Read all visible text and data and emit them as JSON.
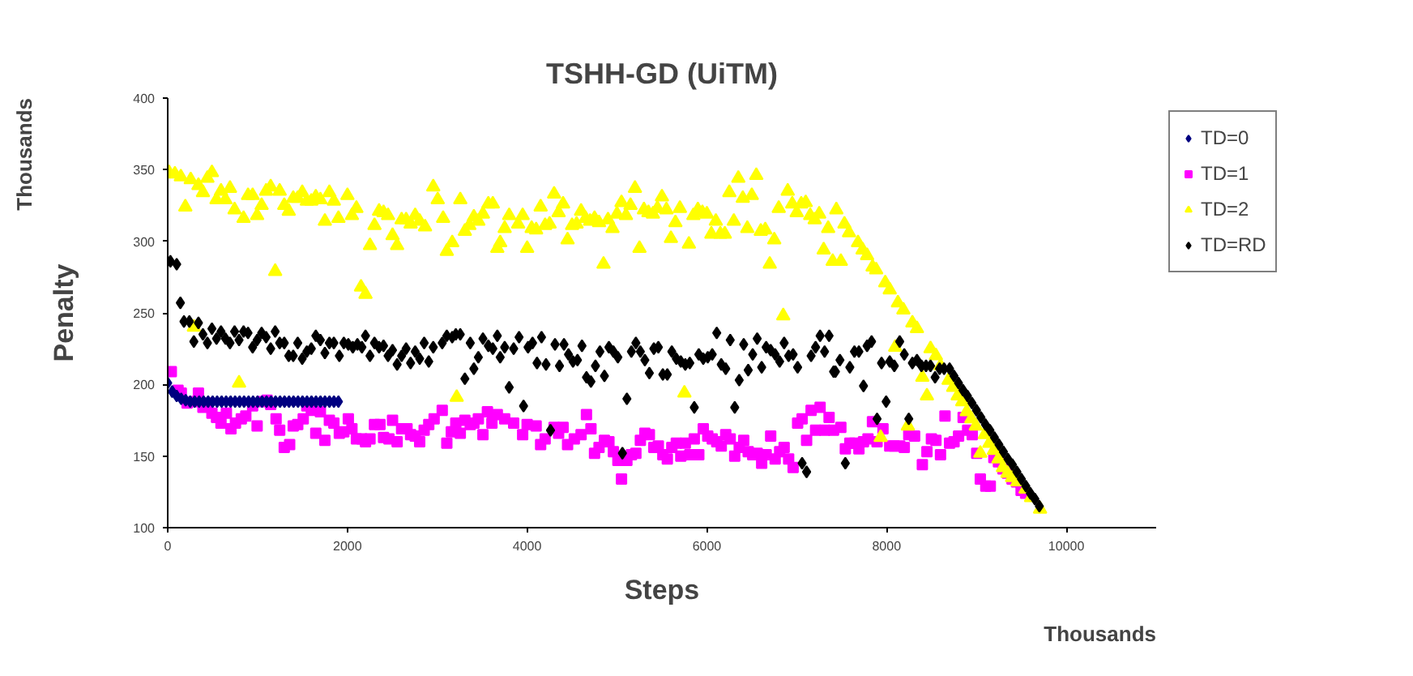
{
  "chart_data": {
    "type": "scatter",
    "title": "TSHH-GD (UiTM)",
    "xlabel": "Steps",
    "ylabel": "Penalty",
    "annotations": [
      "Thousands",
      "Thousands"
    ],
    "xlim": [
      0,
      11000
    ],
    "xticks": [
      0,
      2000,
      4000,
      6000,
      8000,
      10000
    ],
    "ylim": [
      100,
      400
    ],
    "yticks": [
      100,
      150,
      200,
      250,
      300,
      350,
      400
    ],
    "grid": false,
    "legend": "top right",
    "series": [
      {
        "name": "TD=0",
        "color": "#000080",
        "marker": "diamond",
        "x": [
          0,
          50,
          100,
          150,
          200,
          250,
          300,
          350,
          400,
          450,
          500,
          550,
          600,
          650,
          700,
          750,
          800,
          850,
          900,
          950,
          1000,
          1050,
          1100,
          1150,
          1200,
          1250,
          1300,
          1350,
          1400,
          1450,
          1500,
          1550,
          1600,
          1650,
          1700,
          1750,
          1800,
          1850,
          1900
        ],
        "values": [
          201,
          195,
          192,
          190,
          189,
          188,
          188,
          188,
          188,
          188,
          188,
          188,
          188,
          188,
          188,
          188,
          188,
          188,
          188,
          188,
          188,
          188,
          188,
          188,
          188,
          188,
          188,
          188,
          188,
          188,
          188,
          188,
          188,
          188,
          188,
          188,
          188,
          188,
          188
        ]
      },
      {
        "name": "TD=1",
        "color": "#ff00ff",
        "marker": "square",
        "x": [
          40,
          115,
          151,
          216,
          291,
          342,
          392,
          442,
          492,
          543,
          593,
          653,
          704,
          754,
          819,
          869,
          945,
          995,
          1045,
          1106,
          1146,
          1206,
          1246,
          1297,
          1357,
          1397,
          1447,
          1508,
          1548,
          1598,
          1648,
          1699,
          1749,
          1799,
          1849,
          1910,
          1960,
          2010,
          2050,
          2100,
          2161,
          2201,
          2251,
          2301,
          2362,
          2402,
          2462,
          2502,
          2553,
          2603,
          2663,
          2703,
          2754,
          2804,
          2854,
          2905,
          2965,
          3055,
          3106,
          3156,
          3206,
          3256,
          3307,
          3367,
          3407,
          3457,
          3508,
          3558,
          3608,
          3668,
          3750,
          3850,
          3950,
          4000,
          4100,
          4150,
          4200,
          4300,
          4350,
          4400,
          4450,
          4525,
          4600,
          4660,
          4710,
          4750,
          4800,
          4860,
          4910,
          4960,
          5010,
          5050,
          5110,
          5160,
          5210,
          5260,
          5310,
          5360,
          5410,
          5460,
          5510,
          5560,
          5610,
          5660,
          5710,
          5760,
          5810,
          5860,
          5910,
          5960,
          6010,
          6060,
          6110,
          6160,
          6210,
          6260,
          6310,
          6360,
          6410,
          6460,
          6510,
          6560,
          6610,
          6660,
          6710,
          6760,
          6810,
          6860,
          6910,
          6960,
          7010,
          7060,
          7110,
          7160,
          7210,
          7260,
          7310,
          7360,
          7410,
          7491,
          7541,
          7591,
          7642,
          7692,
          7743,
          7793,
          7843,
          7894,
          7960,
          8035,
          8086,
          8146,
          8197,
          8247,
          8312,
          8398,
          8449,
          8499,
          8549,
          8600,
          8650,
          8701,
          8751,
          8801,
          8852,
          8902,
          8953,
          9003,
          9043,
          9104,
          9154,
          9194,
          9245,
          9295,
          9345,
          9396,
          9446,
          9497,
          9547
        ],
        "values": [
          209,
          196,
          194,
          187,
          188,
          194,
          184,
          187,
          180,
          177,
          173,
          180,
          169,
          173,
          176,
          178,
          185,
          171,
          188,
          189,
          186,
          176,
          168,
          156,
          158,
          171,
          172,
          176,
          185,
          182,
          166,
          181,
          161,
          175,
          173,
          166,
          167,
          176,
          169,
          162,
          162,
          160,
          162,
          172,
          172,
          163,
          162,
          175,
          160,
          169,
          169,
          165,
          164,
          160,
          168,
          172,
          176,
          182,
          159,
          167,
          173,
          166,
          175,
          172,
          173,
          176,
          165,
          181,
          173,
          179,
          176,
          173,
          165,
          172,
          171,
          158,
          162,
          170,
          166,
          170,
          158,
          162,
          165,
          179,
          169,
          152,
          156,
          161,
          160,
          153,
          147,
          134,
          147,
          151,
          152,
          161,
          166,
          165,
          156,
          157,
          151,
          148,
          156,
          159,
          150,
          159,
          151,
          162,
          151,
          169,
          164,
          162,
          160,
          157,
          165,
          162,
          150,
          156,
          161,
          153,
          151,
          152,
          145,
          151,
          164,
          148,
          153,
          156,
          148,
          142,
          173,
          176,
          161,
          182,
          168,
          184,
          168,
          177,
          168,
          170,
          155,
          159,
          159,
          155,
          160,
          162,
          174,
          160,
          169,
          157,
          157,
          157,
          156,
          165,
          164,
          144,
          153,
          162,
          161,
          151,
          178,
          159,
          160,
          164,
          177,
          168,
          165,
          152,
          134,
          129,
          129,
          149,
          146,
          141,
          138,
          134,
          132,
          126,
          124
        ]
      },
      {
        "name": "TD=2",
        "color": "#ffff00",
        "marker": "triangle",
        "x": [
          15,
          80,
          146,
          196,
          256,
          291,
          342,
          392,
          442,
          492,
          543,
          593,
          643,
          693,
          744,
          794,
          844,
          894,
          945,
          995,
          1045,
          1095,
          1146,
          1196,
          1246,
          1297,
          1347,
          1397,
          1447,
          1497,
          1548,
          1598,
          1648,
          1699,
          1749,
          1799,
          1849,
          1900,
          2000,
          2050,
          2100,
          2151,
          2201,
          2251,
          2301,
          2352,
          2402,
          2452,
          2502,
          2553,
          2603,
          2653,
          2703,
          2754,
          2804,
          2864,
          2955,
          3005,
          3065,
          3106,
          3166,
          3216,
          3256,
          3307,
          3357,
          3407,
          3457,
          3508,
          3568,
          3618,
          3668,
          3700,
          3750,
          3800,
          3900,
          3950,
          4000,
          4050,
          4100,
          4150,
          4200,
          4250,
          4300,
          4350,
          4400,
          4450,
          4500,
          4550,
          4600,
          4650,
          4700,
          4750,
          4800,
          4850,
          4900,
          4950,
          5000,
          5050,
          5100,
          5150,
          5200,
          5250,
          5300,
          5350,
          5400,
          5450,
          5500,
          5550,
          5600,
          5650,
          5700,
          5750,
          5800,
          5850,
          5900,
          5950,
          6000,
          6050,
          6100,
          6150,
          6200,
          6250,
          6300,
          6350,
          6400,
          6450,
          6500,
          6550,
          6600,
          6650,
          6700,
          6750,
          6800,
          6850,
          6900,
          6950,
          7000,
          7050,
          7100,
          7150,
          7200,
          7250,
          7300,
          7350,
          7400,
          7441,
          7491,
          7531,
          7582,
          7682,
          7733,
          7783,
          7844,
          7884,
          7934,
          7985,
          8035,
          8096,
          8126,
          8187,
          8237,
          8287,
          8338,
          8398,
          8449,
          8489,
          8549,
          8600,
          8690,
          8741,
          8791,
          8842,
          8892,
          8943,
          8993,
          9043,
          9093,
          9144,
          9194,
          9245,
          9295,
          9345,
          9396,
          9456,
          9547,
          9608,
          9708
        ],
        "values": [
          348,
          347,
          345,
          324,
          343,
          240,
          339,
          334,
          344,
          348,
          329,
          335,
          329,
          337,
          322,
          201,
          316,
          332,
          332,
          318,
          325,
          335,
          338,
          279,
          335,
          325,
          321,
          330,
          330,
          334,
          328,
          328,
          331,
          329,
          314,
          334,
          328,
          316,
          332,
          318,
          323,
          268,
          263,
          297,
          311,
          321,
          320,
          318,
          304,
          297,
          315,
          315,
          312,
          318,
          314,
          310,
          338,
          329,
          316,
          293,
          299,
          191,
          329,
          307,
          311,
          317,
          314,
          319,
          326,
          326,
          295,
          299,
          309,
          318,
          312,
          318,
          295,
          309,
          308,
          324,
          311,
          312,
          333,
          320,
          326,
          301,
          311,
          312,
          321,
          316,
          314,
          316,
          313,
          284,
          315,
          309,
          319,
          327,
          318,
          325,
          337,
          295,
          322,
          320,
          319,
          323,
          331,
          322,
          302,
          313,
          323,
          194,
          298,
          318,
          322,
          320,
          319,
          305,
          314,
          305,
          305,
          334,
          314,
          344,
          330,
          309,
          332,
          346,
          307,
          308,
          284,
          301,
          323,
          248,
          335,
          326,
          320,
          326,
          327,
          318,
          315,
          319,
          294,
          309,
          286,
          322,
          286,
          312,
          306,
          299,
          294,
          290,
          282,
          280,
          163,
          271,
          266,
          226,
          257,
          252,
          171,
          243,
          239,
          205,
          192,
          225,
          220,
          213,
          203,
          198,
          192,
          188,
          181,
          176,
          171,
          152,
          165,
          159,
          154,
          148,
          142,
          138,
          135,
          132,
          127,
          121,
          113
        ]
      },
      {
        "name": "TD=RD",
        "color": "#000000",
        "marker": "diamond",
        "x": [
          30,
          100,
          141,
          181,
          241,
          291,
          342,
          392,
          442,
          492,
          543,
          593,
          643,
          693,
          744,
          794,
          844,
          894,
          945,
          995,
          1045,
          1095,
          1146,
          1196,
          1246,
          1297,
          1347,
          1397,
          1447,
          1497,
          1548,
          1598,
          1648,
          1699,
          1749,
          1799,
          1849,
          1910,
          1960,
          2010,
          2060,
          2111,
          2161,
          2201,
          2251,
          2301,
          2352,
          2402,
          2452,
          2502,
          2553,
          2603,
          2653,
          2703,
          2754,
          2804,
          2854,
          2905,
          2955,
          3055,
          3106,
          3166,
          3206,
          3256,
          3307,
          3367,
          3407,
          3457,
          3508,
          3568,
          3618,
          3668,
          3700,
          3750,
          3800,
          3850,
          3910,
          3960,
          4010,
          4060,
          4110,
          4160,
          4210,
          4260,
          4310,
          4360,
          4410,
          4460,
          4510,
          4560,
          4610,
          4660,
          4710,
          4760,
          4810,
          4860,
          4910,
          4960,
          5010,
          5060,
          5110,
          5160,
          5210,
          5260,
          5310,
          5360,
          5410,
          5460,
          5510,
          5560,
          5610,
          5660,
          5710,
          5760,
          5810,
          5860,
          5910,
          5960,
          6010,
          6060,
          6110,
          6160,
          6210,
          6260,
          6310,
          6360,
          6410,
          6460,
          6510,
          6560,
          6610,
          6660,
          6710,
          6760,
          6810,
          6860,
          6910,
          6960,
          7010,
          7060,
          7110,
          7160,
          7210,
          7260,
          7310,
          7360,
          7410,
          7431,
          7481,
          7541,
          7591,
          7642,
          7692,
          7743,
          7783,
          7833,
          7894,
          7944,
          7995,
          8035,
          8086,
          8146,
          8197,
          8247,
          8287,
          8338,
          8388,
          8439,
          8489,
          8540,
          8590,
          8640,
          8701,
          8750,
          8800,
          8850,
          8900,
          8950,
          9000,
          9050,
          9100,
          9150,
          9200,
          9250,
          9300,
          9350,
          9400,
          9450,
          9500,
          9550,
          9600,
          9650,
          9700
        ],
        "values": [
          286,
          284,
          257,
          244,
          244,
          230,
          243,
          235,
          229,
          239,
          232,
          237,
          232,
          229,
          237,
          231,
          237,
          236,
          226,
          231,
          236,
          233,
          225,
          237,
          229,
          229,
          220,
          220,
          229,
          218,
          223,
          225,
          234,
          231,
          222,
          229,
          229,
          220,
          229,
          228,
          226,
          228,
          226,
          234,
          220,
          229,
          226,
          227,
          220,
          224,
          214,
          220,
          225,
          215,
          223,
          218,
          229,
          216,
          226,
          229,
          234,
          233,
          235,
          235,
          204,
          229,
          211,
          219,
          232,
          227,
          225,
          234,
          219,
          226,
          198,
          225,
          233,
          185,
          226,
          229,
          215,
          233,
          214,
          168,
          228,
          213,
          228,
          221,
          216,
          217,
          227,
          205,
          202,
          213,
          223,
          206,
          226,
          223,
          219,
          152,
          190,
          223,
          229,
          223,
          217,
          208,
          225,
          226,
          207,
          207,
          223,
          218,
          216,
          214,
          215,
          184,
          221,
          218,
          219,
          221,
          236,
          214,
          211,
          231,
          184,
          203,
          228,
          210,
          221,
          232,
          212,
          226,
          224,
          221,
          216,
          229,
          220,
          221,
          212,
          145,
          139,
          220,
          226,
          234,
          223,
          234,
          209,
          209,
          217,
          145,
          212,
          223,
          223,
          199,
          227,
          230,
          176,
          215,
          188,
          216,
          213,
          230,
          221,
          176,
          215,
          217,
          213,
          213,
          213,
          205,
          211,
          211,
          211,
          206,
          201,
          196,
          192,
          187,
          182,
          177,
          172,
          168,
          163,
          158,
          153,
          148,
          144,
          139,
          134,
          129,
          124,
          120,
          115
        ]
      }
    ]
  }
}
